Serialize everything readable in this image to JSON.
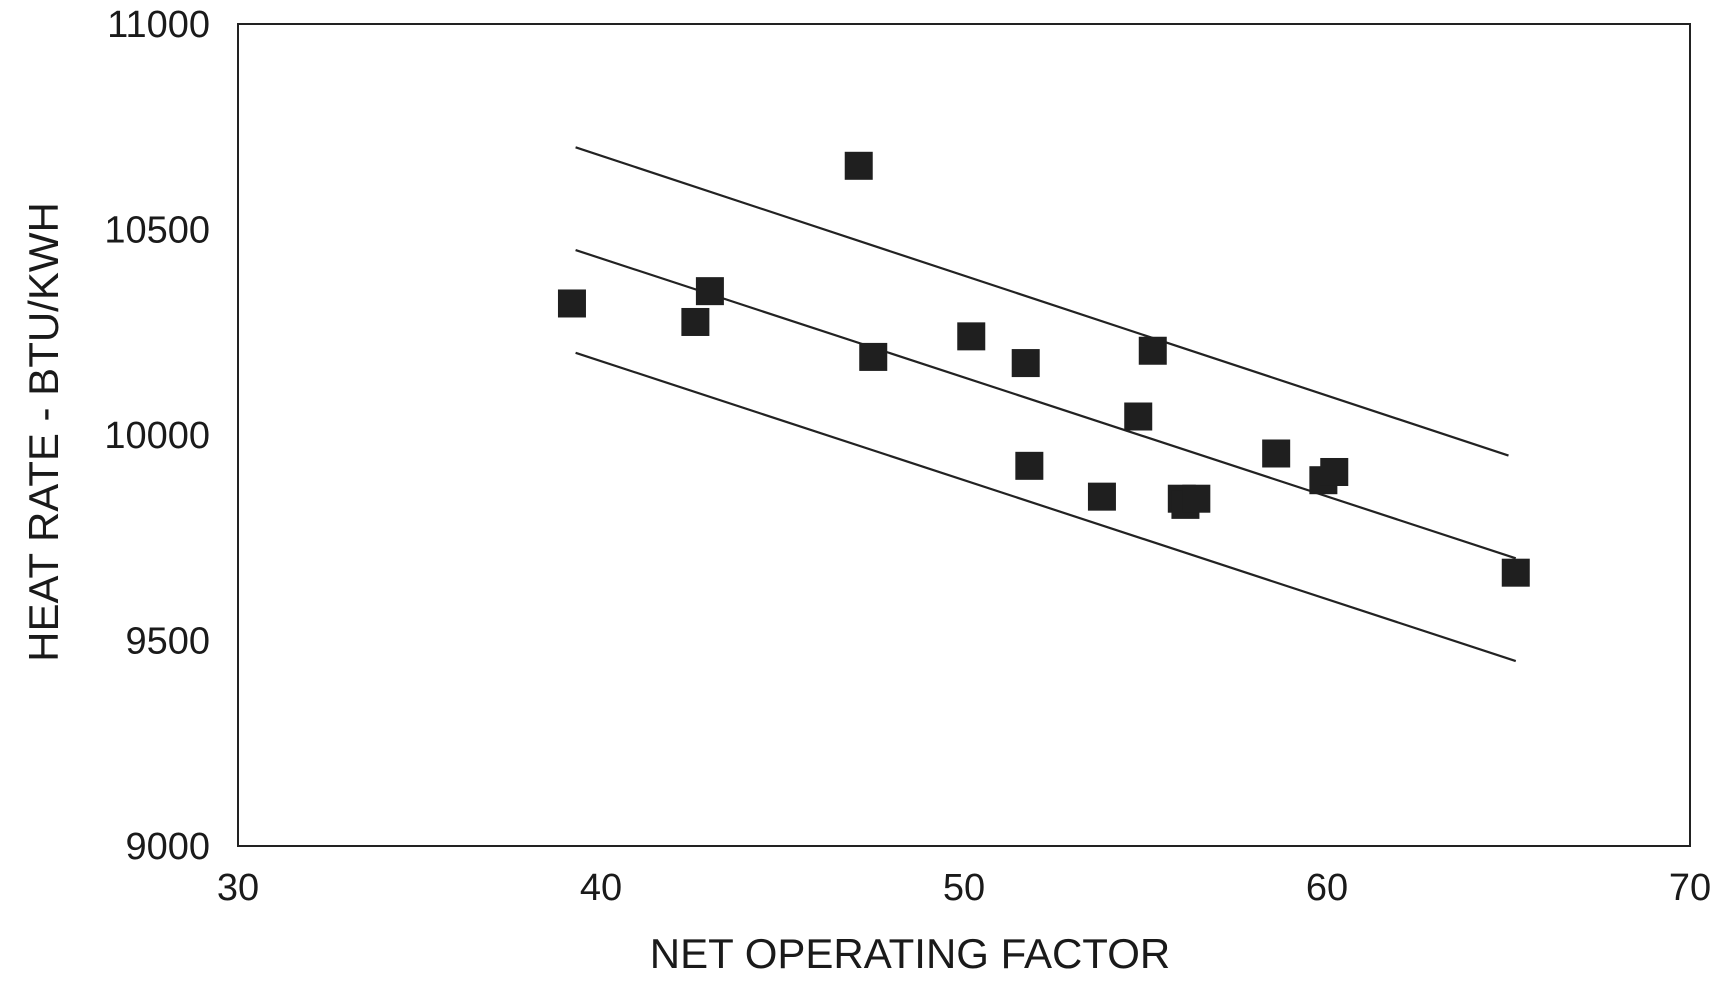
{
  "chart_data": {
    "type": "scatter",
    "xlabel": "NET OPERATING FACTOR",
    "ylabel": "HEAT RATE - BTU/KWH",
    "xlim": [
      30,
      70
    ],
    "ylim": [
      9000,
      11000
    ],
    "x_ticks": [
      "30",
      "40",
      "50",
      "60",
      "70"
    ],
    "y_ticks": [
      "9000",
      "9500",
      "10000",
      "10500",
      "11000"
    ],
    "grid": false,
    "legend": "none",
    "series": [
      {
        "points": [
          {
            "x": 39.2,
            "y": 10320
          },
          {
            "x": 42.6,
            "y": 10275
          },
          {
            "x": 43.0,
            "y": 10350
          },
          {
            "x": 47.1,
            "y": 10655
          },
          {
            "x": 47.5,
            "y": 10190
          },
          {
            "x": 50.2,
            "y": 10240
          },
          {
            "x": 51.7,
            "y": 10175
          },
          {
            "x": 51.8,
            "y": 9925
          },
          {
            "x": 53.8,
            "y": 9850
          },
          {
            "x": 54.8,
            "y": 10045
          },
          {
            "x": 55.2,
            "y": 10205
          },
          {
            "x": 56.0,
            "y": 9845
          },
          {
            "x": 56.1,
            "y": 9830
          },
          {
            "x": 56.4,
            "y": 9845
          },
          {
            "x": 58.6,
            "y": 9955
          },
          {
            "x": 59.9,
            "y": 9890
          },
          {
            "x": 60.2,
            "y": 9910
          },
          {
            "x": 65.2,
            "y": 9665
          }
        ]
      }
    ],
    "lines": [
      {
        "x": [
          39.3,
          65.0
        ],
        "y": [
          10700,
          9950
        ]
      },
      {
        "x": [
          39.3,
          65.2
        ],
        "y": [
          10450,
          9700
        ]
      },
      {
        "x": [
          39.3,
          65.2
        ],
        "y": [
          10200,
          9450
        ]
      }
    ]
  }
}
